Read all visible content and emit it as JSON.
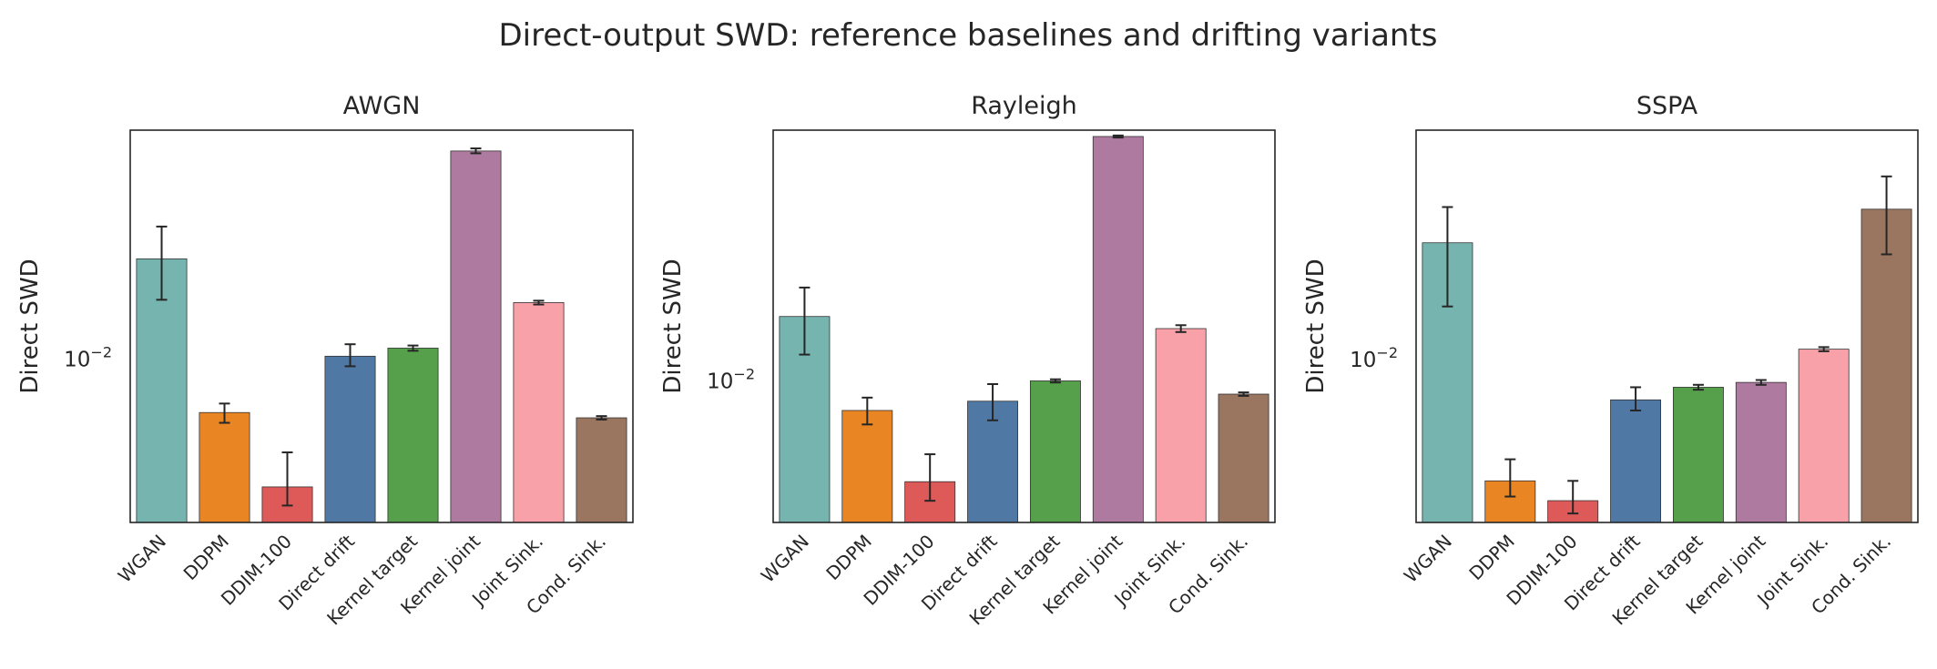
{
  "figure": {
    "title": "Direct-output SWD: reference baselines and drifting variants"
  },
  "chart_data": [
    {
      "type": "bar",
      "title": "AWGN",
      "ylabel": "Direct SWD",
      "yscale": "log",
      "ylim": [
        0.00315,
        0.0504
      ],
      "ytick": {
        "value": 0.01,
        "label": "10−2"
      },
      "grid": false,
      "categories": [
        "WGAN",
        "DDPM",
        "DDIM-100",
        "Direct drift",
        "Kernel target",
        "Kernel joint",
        "Joint Sink.",
        "Cond. Sink."
      ],
      "values": [
        0.0203,
        0.00685,
        0.00405,
        0.0102,
        0.0108,
        0.0435,
        0.0149,
        0.0066
      ],
      "err_low": [
        0.0152,
        0.00637,
        0.00355,
        0.0095,
        0.0106,
        0.0428,
        0.0147,
        0.00652
      ],
      "err_high": [
        0.0255,
        0.0073,
        0.00517,
        0.0111,
        0.011,
        0.0443,
        0.0151,
        0.00668
      ],
      "colors": [
        "#76b4af",
        "#e98623",
        "#de5a59",
        "#4f78a5",
        "#569f4b",
        "#ae7aa0",
        "#f9a1a9",
        "#9a7560"
      ]
    },
    {
      "type": "bar",
      "title": "Rayleigh",
      "ylabel": "Direct SWD",
      "yscale": "log",
      "ylim": [
        0.0041,
        0.0485
      ],
      "ytick": {
        "value": 0.01,
        "label": "10−2"
      },
      "grid": false,
      "categories": [
        "WGAN",
        "DDPM",
        "DDIM-100",
        "Direct drift",
        "Kernel target",
        "Kernel joint",
        "Joint Sink.",
        "Cond. Sink."
      ],
      "values": [
        0.015,
        0.0083,
        0.0053,
        0.0088,
        0.01,
        0.0466,
        0.0139,
        0.0092
      ],
      "err_low": [
        0.0118,
        0.0076,
        0.0047,
        0.0078,
        0.0099,
        0.0463,
        0.0136,
        0.0091
      ],
      "err_high": [
        0.018,
        0.009,
        0.0063,
        0.0098,
        0.0101,
        0.0469,
        0.0142,
        0.0093
      ],
      "colors": [
        "#76b4af",
        "#e98623",
        "#de5a59",
        "#4f78a5",
        "#569f4b",
        "#ae7aa0",
        "#f9a1a9",
        "#9a7560"
      ]
    },
    {
      "type": "bar",
      "title": "SSPA",
      "ylabel": "Direct SWD",
      "yscale": "log",
      "ylim": [
        0.0047,
        0.029
      ],
      "ytick": {
        "value": 0.01,
        "label": "10−2"
      },
      "grid": false,
      "categories": [
        "WGAN",
        "DDPM",
        "DDIM-100",
        "Direct drift",
        "Kernel target",
        "Kernel joint",
        "Joint Sink.",
        "Cond. Sink."
      ],
      "values": [
        0.0172,
        0.0057,
        0.0052,
        0.0083,
        0.0088,
        0.009,
        0.0105,
        0.0201
      ],
      "err_low": [
        0.0128,
        0.0053,
        0.0049,
        0.0079,
        0.0087,
        0.0089,
        0.0104,
        0.0163
      ],
      "err_high": [
        0.0203,
        0.0063,
        0.0057,
        0.0088,
        0.0089,
        0.0091,
        0.0106,
        0.0234
      ],
      "colors": [
        "#76b4af",
        "#e98623",
        "#de5a59",
        "#4f78a5",
        "#569f4b",
        "#ae7aa0",
        "#f9a1a9",
        "#9a7560"
      ]
    }
  ]
}
